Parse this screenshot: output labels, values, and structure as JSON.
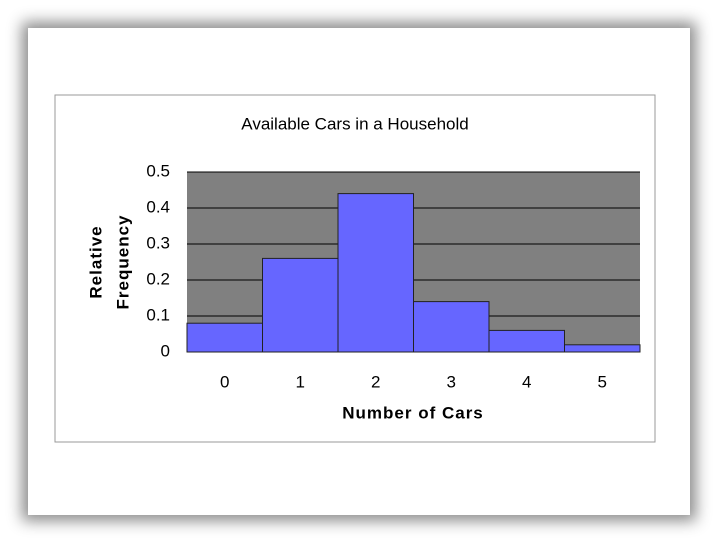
{
  "chart_data": {
    "type": "bar",
    "title": "Available Cars in a Household",
    "x_label": "Number of Cars",
    "y_label": [
      "Relative",
      "Frequency"
    ],
    "categories": [
      "0",
      "1",
      "2",
      "3",
      "4",
      "5"
    ],
    "values": [
      0.08,
      0.26,
      0.44,
      0.14,
      0.06,
      0.02
    ],
    "color": "#6666ff",
    "ylim": [
      0,
      0.5
    ],
    "yticks": [
      0,
      0.1,
      0.2,
      0.3,
      0.4,
      0.5
    ],
    "grid": true
  }
}
